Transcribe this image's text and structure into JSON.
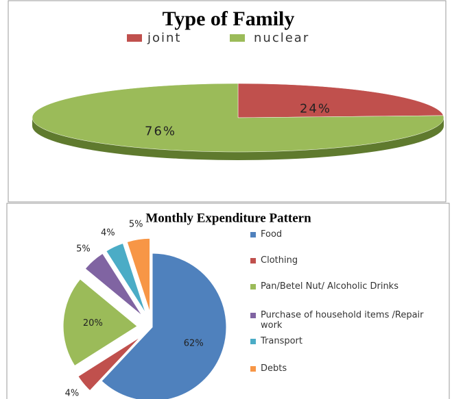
{
  "chart_data": [
    {
      "type": "pie",
      "title": "Type of Family",
      "three_d": true,
      "categories": [
        "joint",
        "nuclear"
      ],
      "values": [
        24,
        76
      ],
      "value_labels": [
        "24%",
        "76%"
      ],
      "colors": [
        "#c0504d",
        "#9bbb59"
      ],
      "legend": "top"
    },
    {
      "type": "pie",
      "title": "Monthly Expenditure Pattern",
      "exploded": true,
      "categories": [
        "Food",
        "Clothing",
        "Pan/Betel Nut/ Alcoholic Drinks",
        "Purchase of household items /Repair work",
        "Transport",
        "Debts"
      ],
      "values": [
        62,
        4,
        20,
        5,
        4,
        5
      ],
      "value_labels": [
        "62%",
        "4%",
        "20%",
        "5%",
        "4%",
        "5%"
      ],
      "colors": [
        "#4f81bd",
        "#c0504d",
        "#9bbb59",
        "#8064a2",
        "#4bacc6",
        "#f79646"
      ],
      "legend": "right"
    }
  ]
}
